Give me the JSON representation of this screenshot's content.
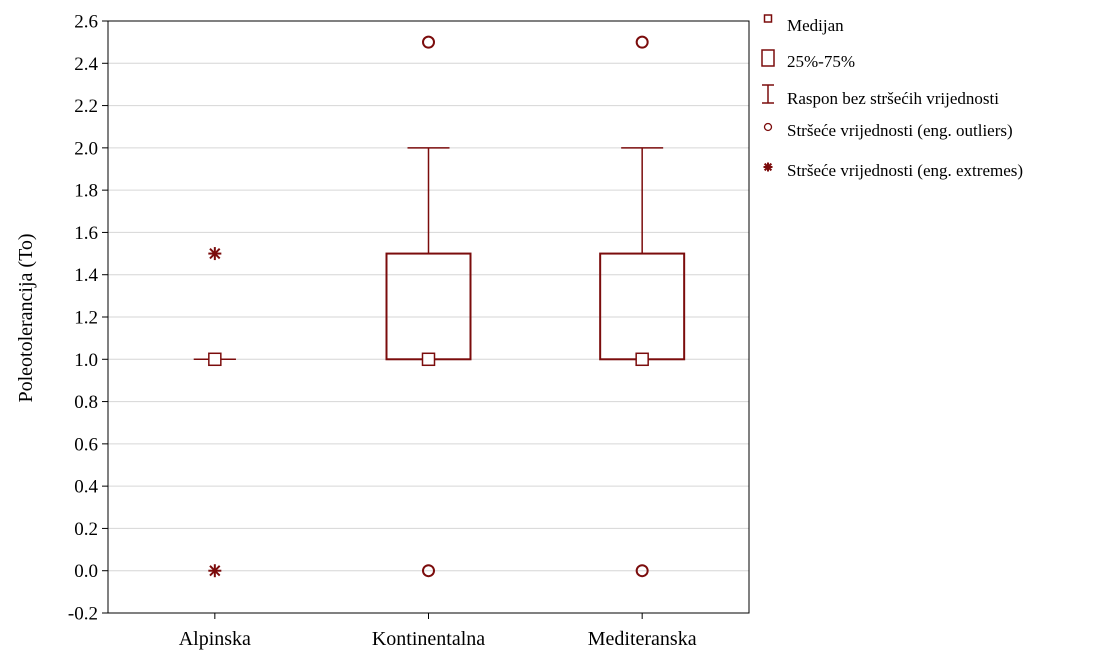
{
  "chart_data": {
    "type": "boxplot",
    "ylabel": "Poleotolerancija (To)",
    "xlabel": "",
    "ylim": [
      -0.2,
      2.6
    ],
    "yticks": [
      "2.6",
      "2.4",
      "2.2",
      "2.0",
      "1.8",
      "1.6",
      "1.4",
      "1.2",
      "1.0",
      "0.8",
      "0.6",
      "0.4",
      "0.2",
      "0.0",
      "-0.2"
    ],
    "grid": true,
    "legend_position": "right",
    "categories": [
      "Alpinska",
      "Kontinentalna",
      "Mediteranska"
    ],
    "boxes": [
      {
        "category": "Alpinska",
        "median": 1.0,
        "q1": 1.0,
        "q3": 1.0,
        "whisker_low": 1.0,
        "whisker_high": 1.0,
        "outliers": [],
        "extremes": [
          1.5,
          0.0
        ]
      },
      {
        "category": "Kontinentalna",
        "median": 1.0,
        "q1": 1.0,
        "q3": 1.5,
        "whisker_low": 1.0,
        "whisker_high": 2.0,
        "outliers": [
          2.5,
          0.0
        ],
        "extremes": []
      },
      {
        "category": "Mediteranska",
        "median": 1.0,
        "q1": 1.0,
        "q3": 1.5,
        "whisker_low": 1.0,
        "whisker_high": 2.0,
        "outliers": [
          2.5,
          0.0
        ],
        "extremes": []
      }
    ],
    "legend": [
      {
        "symbol": "median-square",
        "label": "Medijan"
      },
      {
        "symbol": "box",
        "label": "25%-75%"
      },
      {
        "symbol": "whisker",
        "label": "Raspon bez stršećih vrijednosti"
      },
      {
        "symbol": "outlier-circle",
        "label": "Stršeće vrijednosti (eng. outliers)"
      },
      {
        "symbol": "extreme-star",
        "label": "Stršeće vrijednosti (eng. extremes)"
      }
    ],
    "colors": {
      "series": "#7b0c0c",
      "grid": "#d6d6d6",
      "axis": "#000000"
    }
  }
}
